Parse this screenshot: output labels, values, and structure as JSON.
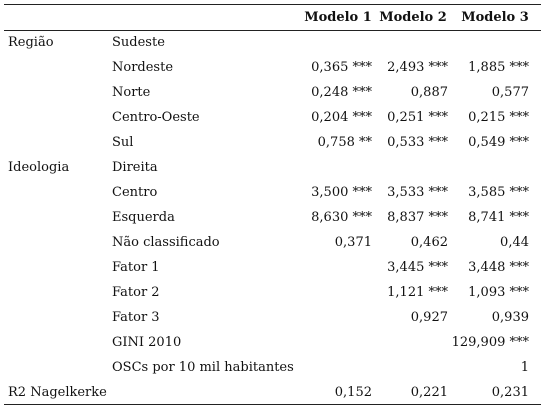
{
  "headers": [
    "Modelo 1",
    "Modelo 2",
    "Modelo 3"
  ],
  "rows": [
    {
      "group": "Região",
      "variable": "Sudeste",
      "m1": "",
      "m2": "",
      "m3": ""
    },
    {
      "group": "",
      "variable": "Nordeste",
      "m1": "0,365 ***",
      "m2": "2,493 ***",
      "m3": "1,885 ***"
    },
    {
      "group": "",
      "variable": "Norte",
      "m1": "0,248 ***",
      "m2": "0,887",
      "m3": "0,577"
    },
    {
      "group": "",
      "variable": "Centro-Oeste",
      "m1": "0,204 ***",
      "m2": "0,251 ***",
      "m3": "0,215 ***"
    },
    {
      "group": "",
      "variable": "Sul",
      "m1": "0,758 **",
      "m2": "0,533 ***",
      "m3": "0,549 ***"
    },
    {
      "group": "Ideologia",
      "variable": "Direita",
      "m1": "",
      "m2": "",
      "m3": ""
    },
    {
      "group": "",
      "variable": "Centro",
      "m1": "3,500 ***",
      "m2": "3,533 ***",
      "m3": "3,585 ***"
    },
    {
      "group": "",
      "variable": "Esquerda",
      "m1": "8,630 ***",
      "m2": "8,837 ***",
      "m3": "8,741 ***"
    },
    {
      "group": "",
      "variable": "Não classificado",
      "m1": "0,371",
      "m2": "0,462",
      "m3": "0,44"
    },
    {
      "group": "",
      "variable": "Fator 1",
      "m1": "",
      "m2": "3,445 ***",
      "m3": "3,448 ***"
    },
    {
      "group": "",
      "variable": "Fator 2",
      "m1": "",
      "m2": "1,121 ***",
      "m3": "1,093 ***"
    },
    {
      "group": "",
      "variable": "Fator 3",
      "m1": "",
      "m2": "0,927",
      "m3": "0,939"
    },
    {
      "group": "",
      "variable": "GINI 2010",
      "m1": "",
      "m2": "",
      "m3": "129,909 ***"
    },
    {
      "group": "",
      "variable": "OSCs por 10 mil habitantes",
      "m1": "",
      "m2": "",
      "m3": "1"
    },
    {
      "group": "R2 Nagelkerke",
      "variable": "",
      "m1": "0,152",
      "m2": "0,221",
      "m3": "0,231"
    }
  ]
}
